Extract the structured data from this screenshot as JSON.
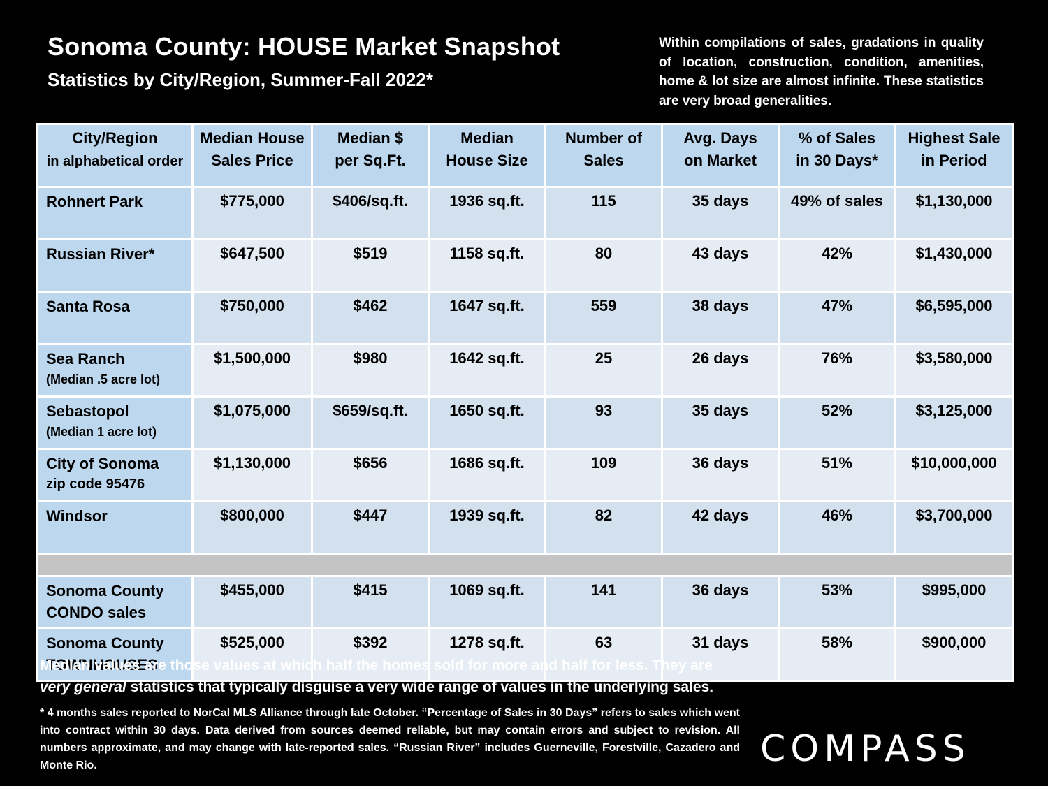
{
  "header": {
    "title": "Sonoma County: HOUSE Market Snapshot",
    "subtitle": "Statistics by City/Region, Summer-Fall 2022*",
    "disclaimer": "Within compilations of sales, gradations in quality of location, construction, condition, amenities, home & lot size are almost infinite. These statistics are very broad generalities."
  },
  "table": {
    "columns": [
      {
        "line1": "City/Region",
        "line2": "in alphabetical order"
      },
      {
        "line1": "Median House",
        "line2": "Sales Price"
      },
      {
        "line1": "Median $",
        "line2": "per Sq.Ft."
      },
      {
        "line1": "Median",
        "line2": "House Size"
      },
      {
        "line1": "Number of",
        "line2": "Sales"
      },
      {
        "line1": "Avg. Days",
        "line2": "on Market"
      },
      {
        "line1": "% of Sales",
        "line2": "in 30 Days*"
      },
      {
        "line1": "Highest Sale",
        "line2": "in Period"
      }
    ],
    "rows": [
      {
        "city": "Rohnert Park",
        "sub": "",
        "price": "$775,000",
        "psf": "$406/sq.ft.",
        "size": "1936 sq.ft.",
        "sales": "115",
        "days": "35 days",
        "pct": "49% of sales",
        "high": "$1,130,000"
      },
      {
        "city": "Russian River*",
        "sub": "",
        "price": "$647,500",
        "psf": "$519",
        "size": "1158 sq.ft.",
        "sales": "80",
        "days": "43 days",
        "pct": "42%",
        "high": "$1,430,000"
      },
      {
        "city": "Santa Rosa",
        "sub": "",
        "price": "$750,000",
        "psf": "$462",
        "size": "1647 sq.ft.",
        "sales": "559",
        "days": "38 days",
        "pct": "47%",
        "high": "$6,595,000"
      },
      {
        "city": "Sea Ranch",
        "sub": "(Median .5 acre lot)",
        "price": "$1,500,000",
        "psf": "$980",
        "size": "1642 sq.ft.",
        "sales": "25",
        "days": "26 days",
        "pct": "76%",
        "high": "$3,580,000"
      },
      {
        "city": "Sebastopol",
        "sub": "(Median 1 acre lot)",
        "price": "$1,075,000",
        "psf": "$659/sq.ft.",
        "size": "1650 sq.ft.",
        "sales": "93",
        "days": "35 days",
        "pct": "52%",
        "high": "$3,125,000"
      },
      {
        "city": "City of Sonoma",
        "sub": "zip code 95476",
        "price": "$1,130,000",
        "psf": "$656",
        "size": "1686 sq.ft.",
        "sales": "109",
        "days": "36 days",
        "pct": "51%",
        "high": "$10,000,000"
      },
      {
        "city": "Windsor",
        "sub": "",
        "price": "$800,000",
        "psf": "$447",
        "size": "1939 sq.ft.",
        "sales": "82",
        "days": "42 days",
        "pct": "46%",
        "high": "$3,700,000"
      }
    ],
    "county_rows": [
      {
        "city": "Sonoma County",
        "sub": "CONDO sales",
        "price": "$455,000",
        "psf": "$415",
        "size": "1069 sq.ft.",
        "sales": "141",
        "days": "36 days",
        "pct": "53%",
        "high": "$995,000"
      },
      {
        "city": "Sonoma County",
        "sub": "TOWNHOUSES",
        "price": "$525,000",
        "psf": "$392",
        "size": "1278 sq.ft.",
        "sales": "63",
        "days": "31 days",
        "pct": "58%",
        "high": "$900,000"
      }
    ]
  },
  "footer": {
    "median_note_part1": "Median values are those values at which half the homes sold for more and half for less. They are ",
    "median_note_em": "very general",
    "median_note_part2": " statistics that typically disguise a very wide range of values in the underlying sales.",
    "fine_print": "* 4 months sales reported to NorCal MLS Alliance through late October. “Percentage of Sales in 30 Days” refers to sales which went into contract within 30 days. Data derived from sources deemed reliable, but may contain errors and subject to revision. All numbers approximate, and may change with late-reported sales. “Russian River” includes Guerneville, Forestville, Cazadero and Monte Rio.",
    "logo": "COMPASS"
  }
}
